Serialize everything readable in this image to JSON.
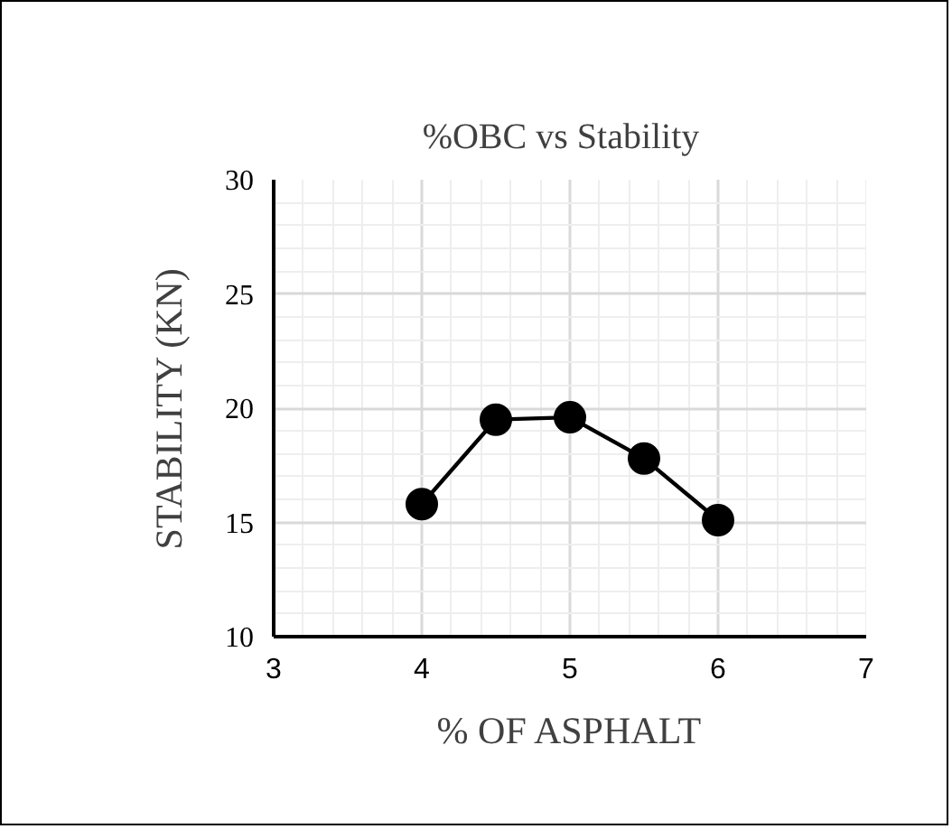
{
  "chart_data": {
    "type": "line",
    "title": "%OBC  vs  Stability",
    "xlabel": "% OF ASPHALT",
    "ylabel": "STABILITY (KN)",
    "x": [
      4,
      4.5,
      5,
      5.5,
      6
    ],
    "series": [
      {
        "color": "#000000",
        "values": [
          15.8,
          19.5,
          19.6,
          17.8,
          15.1
        ]
      }
    ],
    "xlim": [
      3,
      7
    ],
    "xticks": [
      3,
      4,
      5,
      6,
      7
    ],
    "ylim": [
      10,
      30
    ],
    "yticks": [
      10,
      15,
      20,
      25,
      30
    ],
    "grid": true,
    "marker": "circle",
    "line_style": "solid"
  }
}
